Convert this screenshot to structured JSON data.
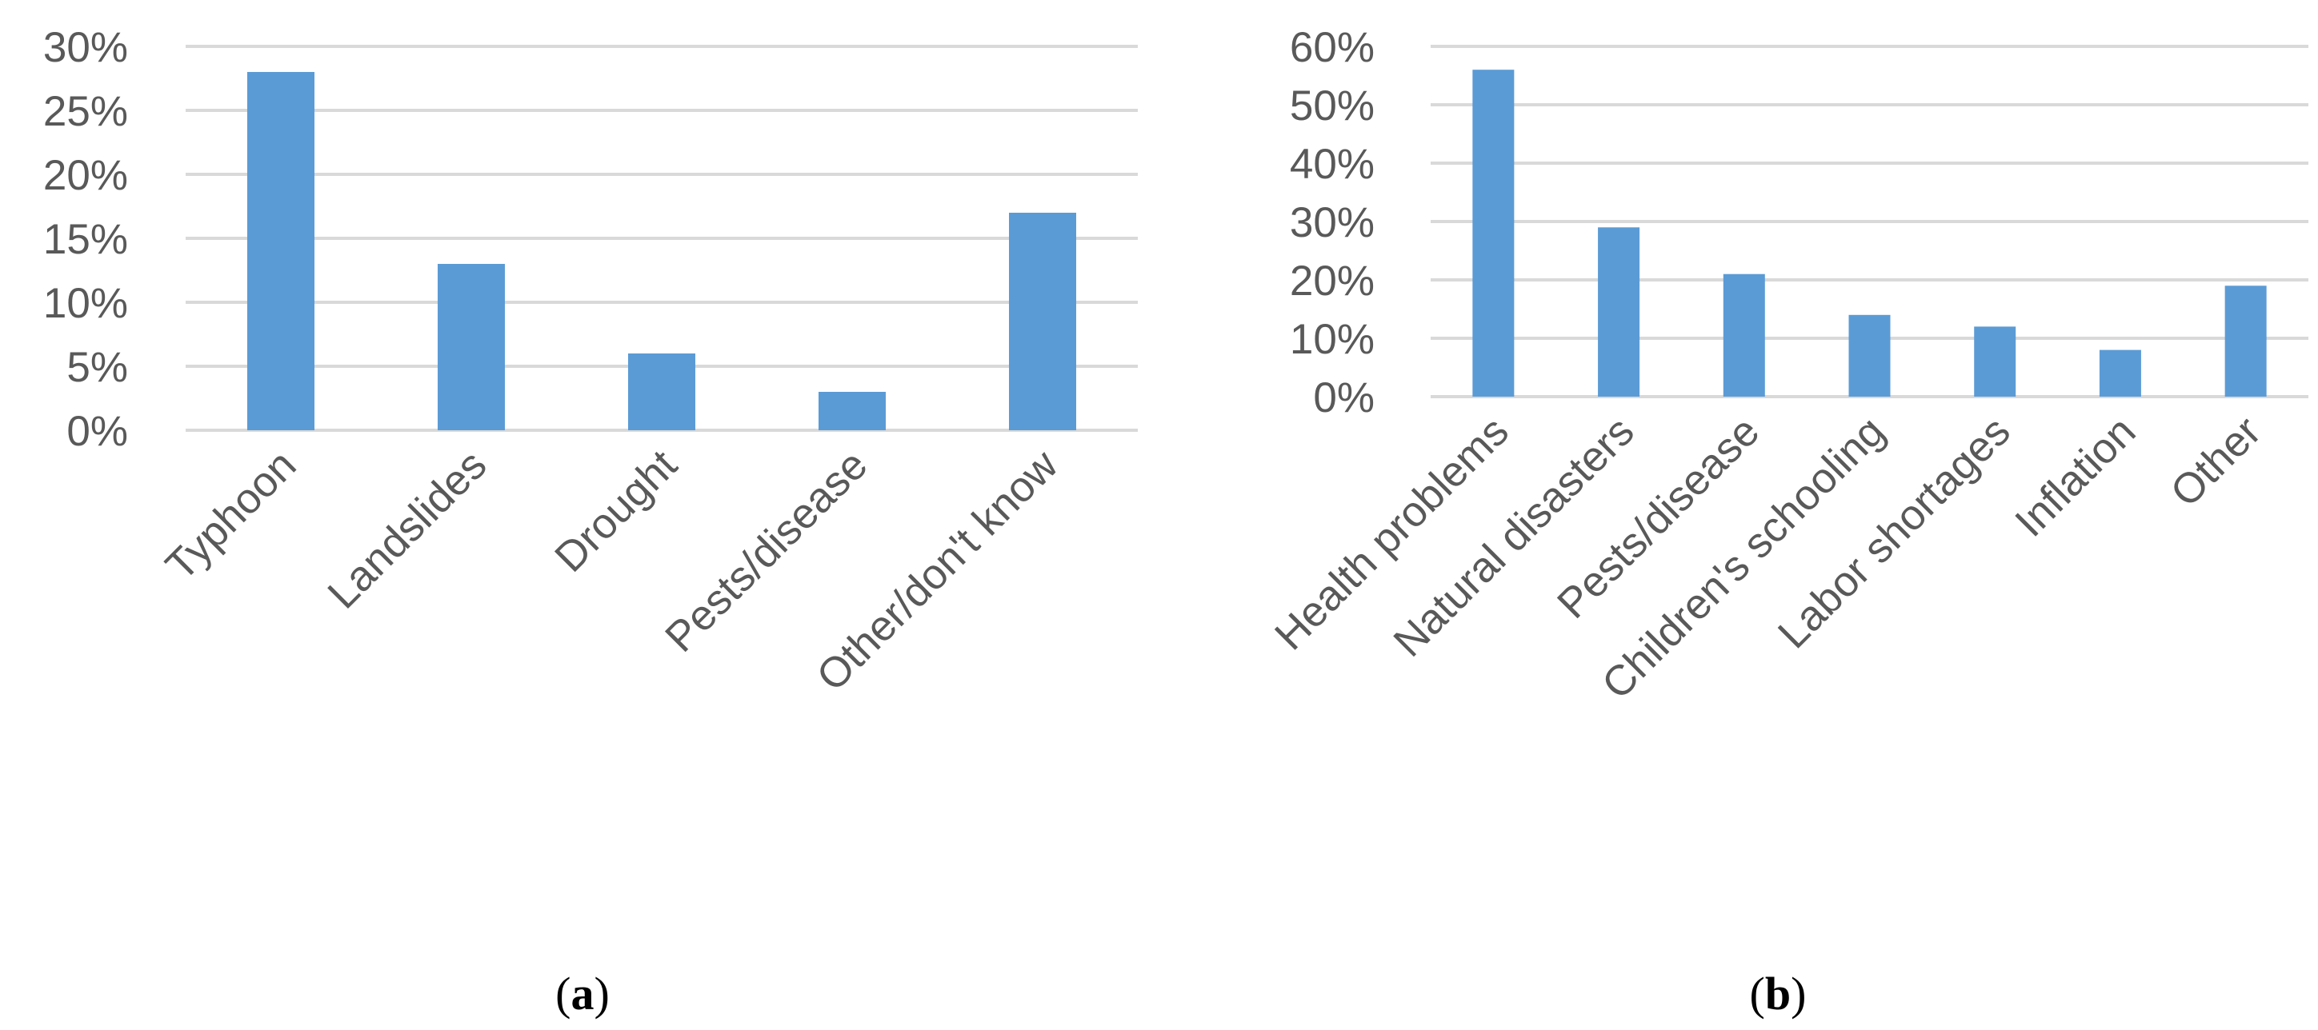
{
  "chart_data": [
    {
      "type": "bar",
      "panel_label": "a",
      "categories": [
        "Typhoon",
        "Landslides",
        "Drought",
        "Pests/disease",
        "Other/don't know"
      ],
      "values": [
        0.28,
        0.13,
        0.06,
        0.03,
        0.17
      ],
      "ylim": [
        0,
        0.3
      ],
      "yticks": [
        0,
        0.05,
        0.1,
        0.15,
        0.2,
        0.25,
        0.3
      ],
      "ytick_labels": [
        "0%",
        "5%",
        "10%",
        "15%",
        "20%",
        "25%",
        "30%"
      ],
      "grid": true,
      "bar_color": "#5b9bd5"
    },
    {
      "type": "bar",
      "panel_label": "b",
      "categories": [
        "Health problems",
        "Natural disasters",
        "Pests/disease",
        "Children's schooling",
        "Labor shortages",
        "Inflation",
        "Other"
      ],
      "values": [
        0.56,
        0.29,
        0.21,
        0.14,
        0.12,
        0.08,
        0.19
      ],
      "ylim": [
        0,
        0.6
      ],
      "yticks": [
        0,
        0.1,
        0.2,
        0.3,
        0.4,
        0.5,
        0.6
      ],
      "ytick_labels": [
        "0%",
        "10%",
        "20%",
        "30%",
        "40%",
        "50%",
        "60%"
      ],
      "grid": true,
      "bar_color": "#5b9bd5"
    }
  ],
  "captions": [
    {
      "open": "(",
      "letter": "a",
      "close": ")"
    },
    {
      "open": "(",
      "letter": "b",
      "close": ")"
    }
  ]
}
